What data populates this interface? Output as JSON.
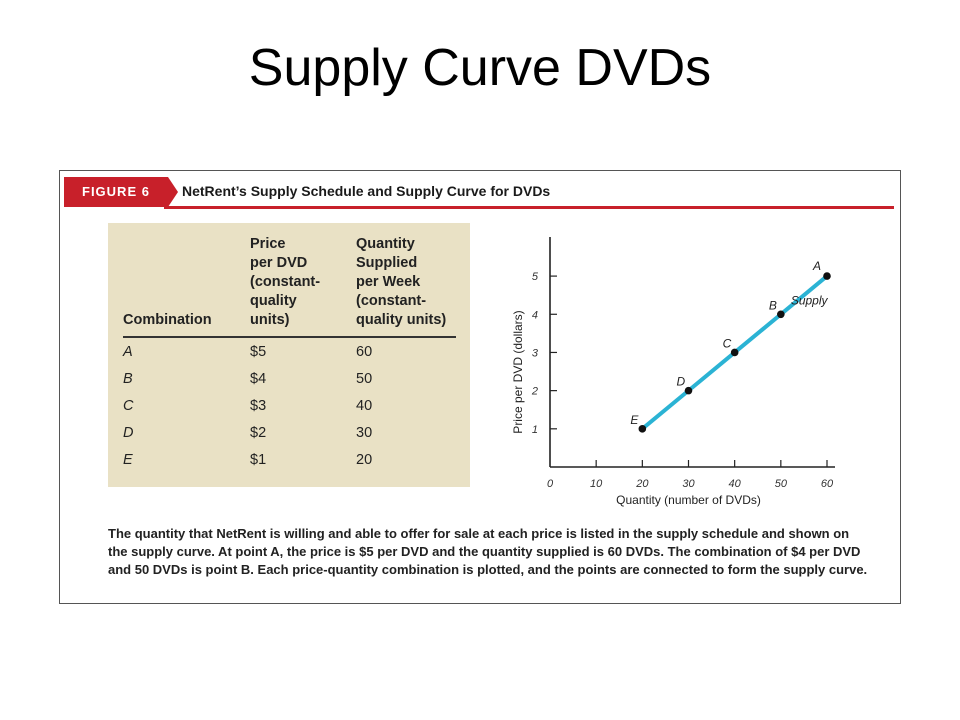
{
  "slide_title": "Supply Curve DVDs",
  "figure": {
    "tag": "FIGURE 6",
    "title": "NetRent’s Supply Schedule and Supply Curve for DVDs",
    "accent_color": "#c8202a",
    "table_bg_color": "#e9e1c5",
    "line_color": "#2bb3d4"
  },
  "schedule": {
    "headers": [
      "Combination",
      "Price\nper DVD\n(constant-\nquality\nunits)",
      "Quantity\nSupplied\nper Week\n(constant-\nquality units)"
    ],
    "rows": [
      {
        "combination": "A",
        "price": "$5",
        "quantity": "60"
      },
      {
        "combination": "B",
        "price": "$4",
        "quantity": "50"
      },
      {
        "combination": "C",
        "price": "$3",
        "quantity": "40"
      },
      {
        "combination": "D",
        "price": "$2",
        "quantity": "30"
      },
      {
        "combination": "E",
        "price": "$1",
        "quantity": "20"
      }
    ]
  },
  "chart_data": {
    "type": "line",
    "xlabel": "Quantity (number of DVDs)",
    "ylabel": "Price per DVD (dollars)",
    "xlim": [
      0,
      60
    ],
    "ylim": [
      0,
      5.5
    ],
    "xticks": [
      "0",
      "10",
      "20",
      "30",
      "40",
      "50",
      "60"
    ],
    "yticks": [
      "1",
      "2",
      "3",
      "4",
      "5"
    ],
    "series": [
      {
        "name": "Supply",
        "points": [
          {
            "label": "E",
            "x": 20,
            "y": 1
          },
          {
            "label": "D",
            "x": 30,
            "y": 2
          },
          {
            "label": "C",
            "x": 40,
            "y": 3
          },
          {
            "label": "B",
            "x": 50,
            "y": 4
          },
          {
            "label": "A",
            "x": 60,
            "y": 5
          }
        ]
      }
    ],
    "grid": false
  },
  "caption": "The quantity that NetRent is willing and able to offer for sale at each price is listed in the supply schedule and shown on the supply curve. At point A, the price is $5 per DVD and the quantity supplied is 60 DVDs. The combination of $4 per DVD and 50 DVDs is point B. Each price-quantity combination is plotted, and the points are connected to form the supply curve."
}
